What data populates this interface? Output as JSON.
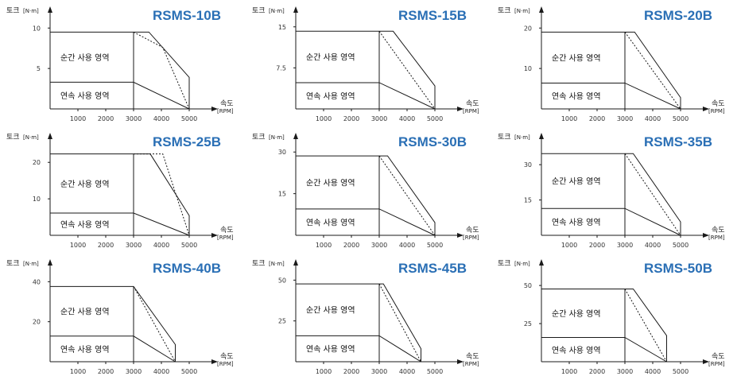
{
  "labels": {
    "torque_axis": "토크",
    "torque_unit": "[N·m]",
    "speed_axis": "속도",
    "speed_unit": "[RPM]",
    "peak_region": "순간 사용 영역",
    "continuous_region": "연속 사용 영역"
  },
  "chart_data": [
    {
      "type": "area",
      "title": "RSMS-10B",
      "xlabel": "속도 [RPM]",
      "ylabel": "토크 [N·m]",
      "xticks": [
        1000,
        2000,
        3000,
        4000,
        5000
      ],
      "yticks": [
        5,
        10
      ],
      "xlim": [
        0,
        5000
      ],
      "ylim": [
        0,
        11.5
      ],
      "peak_torque": 9.5,
      "continuous_torque": 3.3,
      "rated_speed": 3000,
      "max_speed": 5000,
      "peak_envelope": [
        [
          0,
          9.5
        ],
        [
          3550,
          9.5
        ],
        [
          5000,
          3.9
        ],
        [
          5000,
          0
        ]
      ],
      "peak_dotted": [
        [
          3000,
          9.5
        ],
        [
          4050,
          7.6
        ],
        [
          5000,
          0
        ]
      ],
      "continuous_curve": [
        [
          0,
          3.3
        ],
        [
          3000,
          3.3
        ],
        [
          5000,
          0
        ]
      ]
    },
    {
      "type": "area",
      "title": "RSMS-15B",
      "xlabel": "속도 [RPM]",
      "ylabel": "토크 [N·m]",
      "xticks": [
        1000,
        2000,
        3000,
        4000,
        5000
      ],
      "yticks": [
        7.5,
        15
      ],
      "xlim": [
        0,
        5000
      ],
      "ylim": [
        0,
        17
      ],
      "peak_torque": 14.2,
      "continuous_torque": 4.8,
      "rated_speed": 3000,
      "max_speed": 5000,
      "peak_envelope": [
        [
          0,
          14.2
        ],
        [
          3500,
          14.2
        ],
        [
          5000,
          4.2
        ],
        [
          5000,
          0
        ]
      ],
      "peak_dotted": [
        [
          3000,
          14.2
        ],
        [
          5000,
          0
        ]
      ],
      "continuous_curve": [
        [
          0,
          4.8
        ],
        [
          3000,
          4.8
        ],
        [
          5000,
          0
        ]
      ]
    },
    {
      "type": "area",
      "title": "RSMS-20B",
      "xlabel": "속도 [RPM]",
      "ylabel": "토크 [N·m]",
      "xticks": [
        1000,
        2000,
        3000,
        4000,
        5000
      ],
      "yticks": [
        10,
        20
      ],
      "xlim": [
        0,
        5000
      ],
      "ylim": [
        0,
        23
      ],
      "peak_torque": 19,
      "continuous_torque": 6.4,
      "rated_speed": 3000,
      "max_speed": 5000,
      "peak_envelope": [
        [
          0,
          19
        ],
        [
          3350,
          19
        ],
        [
          5000,
          2.8
        ],
        [
          5000,
          0
        ]
      ],
      "peak_dotted": [
        [
          3000,
          19
        ],
        [
          5000,
          0
        ]
      ],
      "continuous_curve": [
        [
          0,
          6.4
        ],
        [
          3000,
          6.4
        ],
        [
          5000,
          0
        ]
      ]
    },
    {
      "type": "area",
      "title": "RSMS-25B",
      "xlabel": "속도 [RPM]",
      "ylabel": "토크 [N·m]",
      "xticks": [
        1000,
        2000,
        3000,
        4000,
        5000
      ],
      "yticks": [
        10,
        20
      ],
      "xlim": [
        0,
        5000
      ],
      "ylim": [
        0,
        25.5
      ],
      "peak_torque": 22.3,
      "continuous_torque": 6.1,
      "rated_speed": 3000,
      "max_speed": 5000,
      "peak_envelope": [
        [
          0,
          22.3
        ],
        [
          3600,
          22.3
        ],
        [
          5000,
          5.4
        ],
        [
          5000,
          0
        ]
      ],
      "peak_dotted": [
        [
          3000,
          22.3
        ],
        [
          4050,
          22.3
        ],
        [
          5000,
          0
        ]
      ],
      "continuous_curve": [
        [
          0,
          6.1
        ],
        [
          3000,
          6.1
        ],
        [
          5000,
          0
        ]
      ]
    },
    {
      "type": "area",
      "title": "RSMS-30B",
      "xlabel": "속도 [RPM]",
      "ylabel": "토크 [N·m]",
      "xticks": [
        1000,
        2000,
        3000,
        4000,
        5000
      ],
      "yticks": [
        15,
        30
      ],
      "xlim": [
        0,
        5000
      ],
      "ylim": [
        0,
        33.5
      ],
      "peak_torque": 28.6,
      "continuous_torque": 9.5,
      "rated_speed": 3000,
      "max_speed": 5000,
      "peak_envelope": [
        [
          0,
          28.6
        ],
        [
          3300,
          28.6
        ],
        [
          5000,
          4.6
        ],
        [
          5000,
          0
        ]
      ],
      "peak_dotted": [
        [
          3000,
          28.6
        ],
        [
          5000,
          0
        ]
      ],
      "continuous_curve": [
        [
          0,
          9.5
        ],
        [
          3000,
          9.5
        ],
        [
          5000,
          0
        ]
      ]
    },
    {
      "type": "area",
      "title": "RSMS-35B",
      "xlabel": "속도 [RPM]",
      "ylabel": "토크 [N·m]",
      "xticks": [
        1000,
        2000,
        3000,
        4000,
        5000
      ],
      "yticks": [
        15,
        30
      ],
      "xlim": [
        0,
        5000
      ],
      "ylim": [
        0,
        39.5
      ],
      "peak_torque": 34.7,
      "continuous_torque": 11.4,
      "rated_speed": 3000,
      "max_speed": 5000,
      "peak_envelope": [
        [
          0,
          34.7
        ],
        [
          3300,
          34.7
        ],
        [
          5000,
          5.7
        ],
        [
          5000,
          0
        ]
      ],
      "peak_dotted": [
        [
          3000,
          34.7
        ],
        [
          5000,
          0
        ]
      ],
      "continuous_curve": [
        [
          0,
          11.4
        ],
        [
          3000,
          11.4
        ],
        [
          5000,
          0
        ]
      ]
    },
    {
      "type": "area",
      "title": "RSMS-40B",
      "xlabel": "속도 [RPM]",
      "ylabel": "토크 [N·m]",
      "xticks": [
        1000,
        2000,
        3000,
        4000,
        5000
      ],
      "yticks": [
        20,
        40
      ],
      "xlim": [
        0,
        5000
      ],
      "ylim": [
        0,
        46.5
      ],
      "peak_torque": 37.6,
      "continuous_torque": 12.8,
      "rated_speed": 3000,
      "max_speed": 4500,
      "peak_envelope": [
        [
          0,
          37.6
        ],
        [
          3000,
          37.6
        ],
        [
          4500,
          8.6
        ],
        [
          4500,
          0
        ]
      ],
      "peak_dotted": [
        [
          3000,
          37.6
        ],
        [
          4500,
          0
        ]
      ],
      "continuous_curve": [
        [
          0,
          12.8
        ],
        [
          3000,
          12.8
        ],
        [
          4500,
          0
        ]
      ]
    },
    {
      "type": "area",
      "title": "RSMS-45B",
      "xlabel": "속도 [RPM]",
      "ylabel": "토크 [N·m]",
      "xticks": [
        1000,
        2000,
        3000,
        4000,
        5000
      ],
      "yticks": [
        25,
        50
      ],
      "xlim": [
        0,
        5000
      ],
      "ylim": [
        0,
        57
      ],
      "peak_torque": 47.7,
      "continuous_torque": 15.9,
      "rated_speed": 3000,
      "max_speed": 4500,
      "peak_envelope": [
        [
          0,
          47.7
        ],
        [
          3150,
          47.7
        ],
        [
          4500,
          8
        ],
        [
          4500,
          0
        ]
      ],
      "peak_dotted": [
        [
          3000,
          47.7
        ],
        [
          4500,
          0
        ]
      ],
      "continuous_curve": [
        [
          0,
          15.9
        ],
        [
          3000,
          15.9
        ],
        [
          4500,
          0
        ]
      ]
    },
    {
      "type": "area",
      "title": "RSMS-50B",
      "xlabel": "속도 [RPM]",
      "ylabel": "토크 [N·m]",
      "xticks": [
        1000,
        2000,
        3000,
        4000,
        5000
      ],
      "yticks": [
        25,
        50
      ],
      "xlim": [
        0,
        5000
      ],
      "ylim": [
        0,
        61
      ],
      "peak_torque": 47.7,
      "continuous_torque": 15.9,
      "rated_speed": 3000,
      "max_speed": 4500,
      "peak_envelope": [
        [
          0,
          47.7
        ],
        [
          3300,
          47.7
        ],
        [
          4500,
          17.1
        ],
        [
          4500,
          0
        ]
      ],
      "peak_dotted": [
        [
          3000,
          47.7
        ],
        [
          4500,
          0
        ]
      ],
      "continuous_curve": [
        [
          0,
          15.9
        ],
        [
          3000,
          15.9
        ],
        [
          4500,
          0
        ]
      ]
    }
  ]
}
